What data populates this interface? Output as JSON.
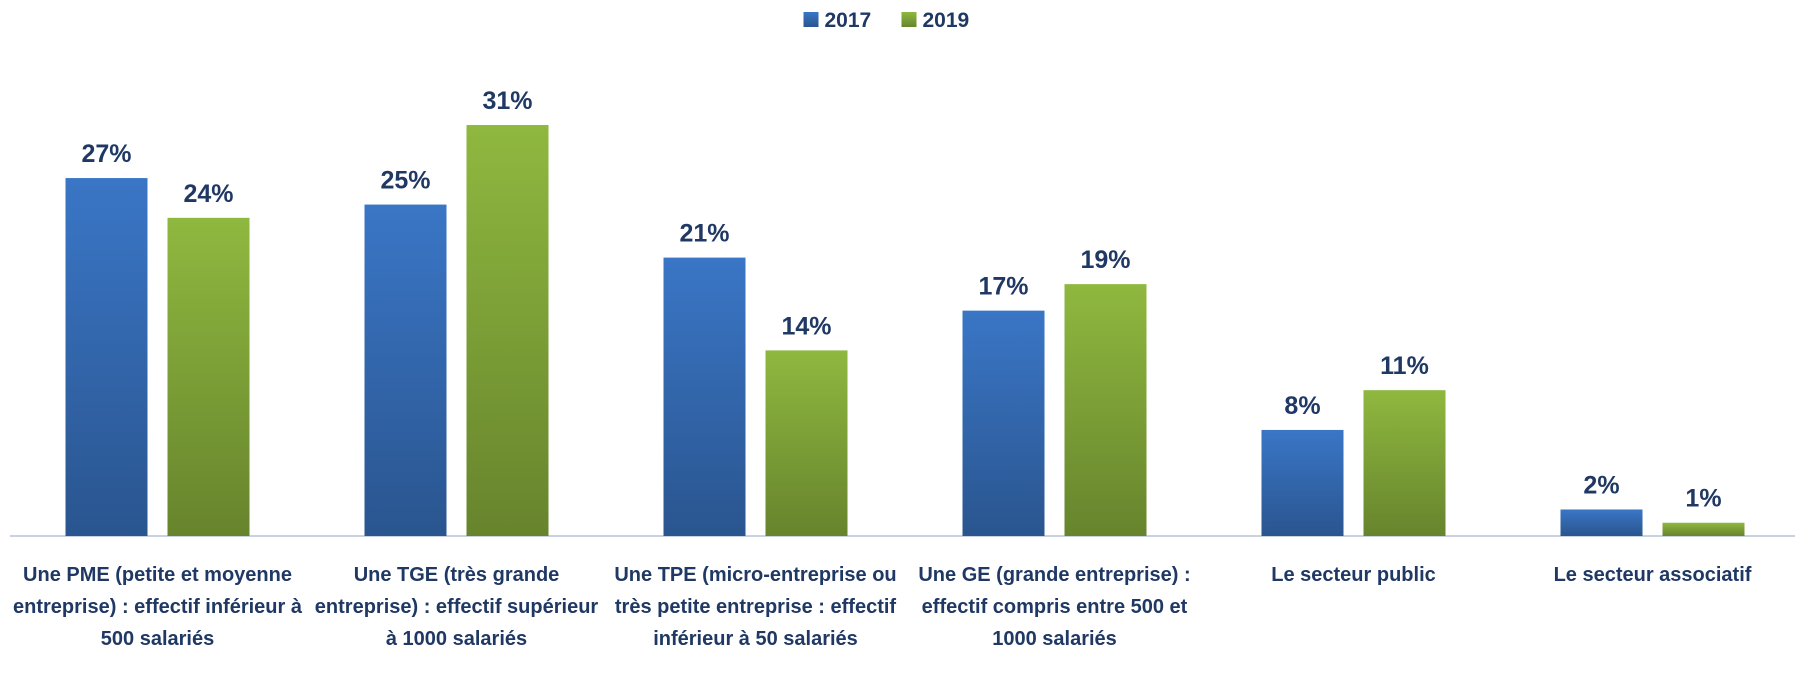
{
  "chart_data": {
    "type": "bar",
    "categories": [
      "Une PME (petite et moyenne entreprise) : effectif inférieur à 500 salariés",
      "Une TGE (très grande entreprise) : effectif supérieur à 1000 salariés",
      "Une TPE (micro-entreprise ou très petite entreprise : effectif inférieur à 50 salariés",
      "Une GE (grande entreprise) : effectif compris entre 500 et 1000 salariés",
      "Le secteur public",
      "Le secteur associatif"
    ],
    "series": [
      {
        "name": "2017",
        "color": "#3a76c6",
        "values": [
          27,
          25,
          21,
          17,
          8,
          2
        ],
        "value_labels": [
          "27%",
          "25%",
          "21%",
          "17%",
          "8%",
          "2%"
        ]
      },
      {
        "name": "2019",
        "color": "#8fb83f",
        "values": [
          24,
          31,
          14,
          19,
          11,
          1
        ],
        "value_labels": [
          "24%",
          "31%",
          "14%",
          "19%",
          "11%",
          "1%"
        ]
      }
    ],
    "ylim": [
      0,
      35
    ],
    "legend": "top"
  }
}
